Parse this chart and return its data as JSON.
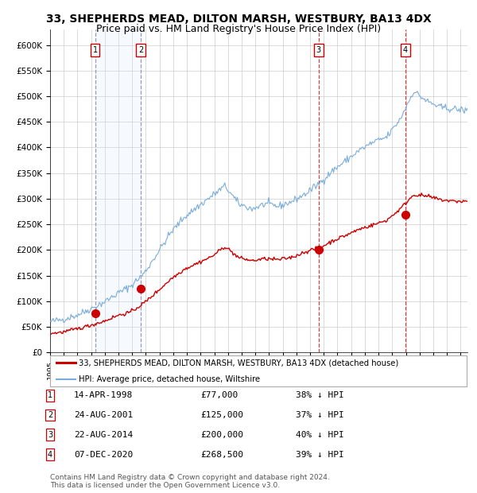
{
  "title": "33, SHEPHERDS MEAD, DILTON MARSH, WESTBURY, BA13 4DX",
  "subtitle": "Price paid vs. HM Land Registry's House Price Index (HPI)",
  "title_fontsize": 10,
  "subtitle_fontsize": 9,
  "ylabel_ticks": [
    "£0",
    "£50K",
    "£100K",
    "£150K",
    "£200K",
    "£250K",
    "£300K",
    "£350K",
    "£400K",
    "£450K",
    "£500K",
    "£550K",
    "£600K"
  ],
  "ytick_values": [
    0,
    50000,
    100000,
    150000,
    200000,
    250000,
    300000,
    350000,
    400000,
    450000,
    500000,
    550000,
    600000
  ],
  "ylim": [
    0,
    630000
  ],
  "sale_prices": [
    77000,
    125000,
    200000,
    268500
  ],
  "sale_labels": [
    "1",
    "2",
    "3",
    "4"
  ],
  "legend_entries": [
    "33, SHEPHERDS MEAD, DILTON MARSH, WESTBURY, BA13 4DX (detached house)",
    "HPI: Average price, detached house, Wiltshire"
  ],
  "table_rows": [
    [
      "1",
      "14-APR-1998",
      "£77,000",
      "38% ↓ HPI"
    ],
    [
      "2",
      "24-AUG-2001",
      "£125,000",
      "37% ↓ HPI"
    ],
    [
      "3",
      "22-AUG-2014",
      "£200,000",
      "40% ↓ HPI"
    ],
    [
      "4",
      "07-DEC-2020",
      "£268,500",
      "39% ↓ HPI"
    ]
  ],
  "footer": "Contains HM Land Registry data © Crown copyright and database right 2024.\nThis data is licensed under the Open Government Licence v3.0.",
  "sale_line_color": "#cc0000",
  "hpi_line_color": "#7aaddb",
  "shaded_region_color": "#ddeeff",
  "grid_color": "#cccccc",
  "sale_marker_color": "#cc0000",
  "dashed_line_color_blue": "#9999bb",
  "dashed_line_color_red": "#cc4444",
  "background_color": "#ffffff"
}
